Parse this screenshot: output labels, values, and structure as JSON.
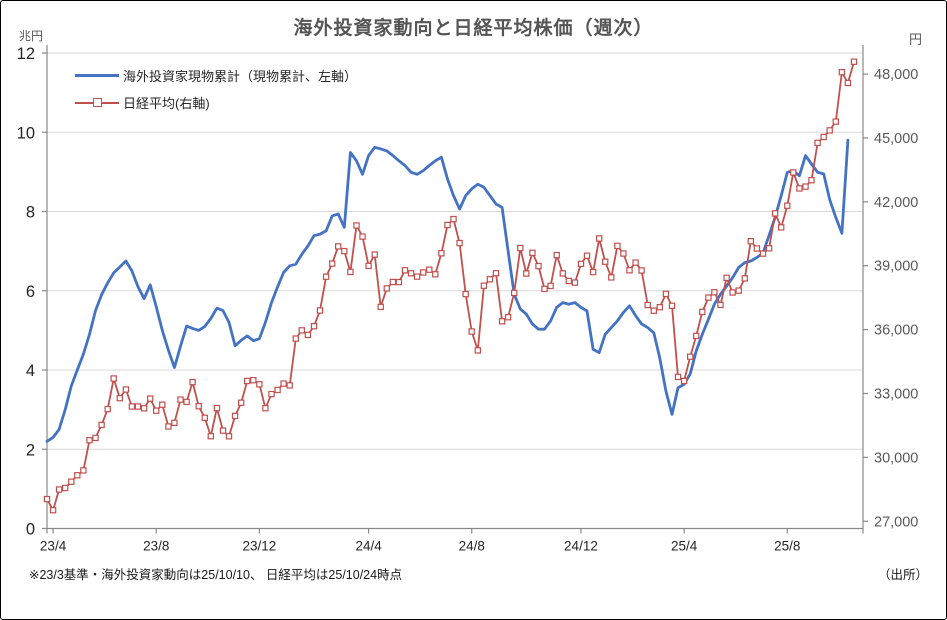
{
  "title": "海外投資家動向と日経平均株価（週次）",
  "left_axis_unit": "兆円",
  "right_axis_unit": "円",
  "legend": {
    "series1_label": "海外投資家現物累計（現物累計、左軸）",
    "series2_label": "日経平均(右軸)"
  },
  "footnote": "※23/3基準・海外投資家動向は25/10/10、 日経平均は25/10/24時点",
  "source_label": "（出所）",
  "colors": {
    "series1_blue": "#4472C4",
    "series2_red": "#C0504D",
    "gridline": "#D9D9D9",
    "axis_line": "#898989",
    "tick_label_left": "#262626",
    "tick_label_right": "#595959",
    "title_gray": "#555555"
  },
  "chart_data": {
    "type": "line",
    "title": "海外投資家動向と日経平均株価（週次）",
    "frequency": "weekly",
    "x_range_note": "weekly points from 2023/3末 (baseline 23/3) to 2025/10; series1 ends 25/10/10, series2 ends 25/10/24",
    "x_tick_labels": [
      "23/4",
      "23/8",
      "23/12",
      "24/4",
      "24/8",
      "24/12",
      "25/4",
      "25/8"
    ],
    "x_tick_week_index": [
      1,
      18,
      35,
      53,
      70,
      88,
      105,
      122
    ],
    "total_weeks": 134,
    "left_axis": {
      "label": "兆円",
      "min": 0,
      "max": 12,
      "ticks": [
        0,
        2,
        4,
        6,
        8,
        10,
        12
      ]
    },
    "right_axis": {
      "label": "円",
      "ticks": [
        27000,
        30000,
        33000,
        36000,
        39000,
        42000,
        45000,
        48000
      ],
      "plot_min": 26660,
      "plot_max": 48990
    },
    "grid": "horizontal-only",
    "legend_position": "top-left-inside",
    "series": [
      {
        "name": "海外投資家現物累計（現物累計、左軸）",
        "axis": "left",
        "unit": "兆円",
        "marker": "none",
        "values": [
          2.2,
          2.3,
          2.5,
          3.0,
          3.6,
          4.0,
          4.4,
          4.9,
          5.5,
          5.9,
          6.2,
          6.45,
          6.6,
          6.75,
          6.5,
          6.1,
          5.8,
          6.15,
          5.6,
          5.0,
          4.5,
          4.06,
          4.6,
          5.11,
          5.05,
          5.0,
          5.1,
          5.3,
          5.56,
          5.5,
          5.2,
          4.61,
          4.75,
          4.86,
          4.74,
          4.79,
          5.2,
          5.7,
          6.1,
          6.46,
          6.63,
          6.67,
          6.92,
          7.13,
          7.39,
          7.43,
          7.51,
          7.89,
          7.94,
          7.6,
          9.49,
          9.28,
          8.94,
          9.41,
          9.62,
          9.58,
          9.53,
          9.41,
          9.28,
          9.16,
          8.99,
          8.94,
          9.03,
          9.16,
          9.28,
          9.37,
          8.82,
          8.4,
          8.06,
          8.4,
          8.57,
          8.69,
          8.61,
          8.4,
          8.19,
          8.1,
          7.0,
          5.91,
          5.54,
          5.41,
          5.16,
          5.03,
          5.03,
          5.24,
          5.58,
          5.7,
          5.66,
          5.7,
          5.58,
          5.49,
          4.52,
          4.44,
          4.9,
          5.07,
          5.24,
          5.45,
          5.62,
          5.37,
          5.16,
          5.07,
          4.94,
          4.3,
          3.47,
          2.88,
          3.55,
          3.64,
          3.9,
          4.48,
          4.9,
          5.28,
          5.66,
          5.91,
          6.12,
          6.33,
          6.59,
          6.71,
          6.75,
          6.84,
          6.95,
          7.4,
          7.85,
          8.4,
          8.99,
          9.03,
          8.9,
          9.41,
          9.2,
          8.99,
          8.95,
          8.3,
          7.85,
          7.45,
          9.8
        ]
      },
      {
        "name": "日経平均(右軸)",
        "axis": "right",
        "unit": "円",
        "marker": "open-square",
        "values": [
          28041,
          27518,
          28493,
          28564,
          28856,
          29158,
          29388,
          30808,
          30916,
          31524,
          32265,
          33706,
          32781,
          33189,
          32388,
          32391,
          32304,
          32759,
          32193,
          32473,
          31450,
          31624,
          32711,
          32606,
          33533,
          32402,
          31858,
          30995,
          32316,
          31259,
          30992,
          31950,
          32568,
          33585,
          33626,
          33432,
          32308,
          32971,
          33170,
          33464,
          33378,
          35577,
          35963,
          35751,
          36158,
          36897,
          38487,
          39099,
          39910,
          39688,
          38708,
          40888,
          40369,
          38992,
          39524,
          37068,
          37935,
          38236,
          38229,
          38787,
          38646,
          38488,
          38683,
          38814,
          38596,
          39583,
          40912,
          41190,
          40064,
          37667,
          35909,
          35025,
          38062,
          38364,
          38648,
          36391,
          36581,
          37724,
          39830,
          38636,
          39605,
          38981,
          37913,
          38053,
          39500,
          38642,
          38283,
          38208,
          39091,
          39470,
          38702,
          40281,
          39190,
          38451,
          39932,
          39572,
          38787,
          39149,
          38776,
          37156,
          36887,
          37053,
          37677,
          37120,
          33781,
          33586,
          34730,
          35706,
          36830,
          37503,
          37754,
          37160,
          38432,
          37741,
          37834,
          38403,
          40151,
          39811,
          39570,
          39819,
          41456,
          40800,
          41820,
          43378,
          42633,
          42718,
          43018,
          44768,
          45045,
          45355,
          45770,
          48088,
          47582,
          48580
        ]
      }
    ]
  }
}
